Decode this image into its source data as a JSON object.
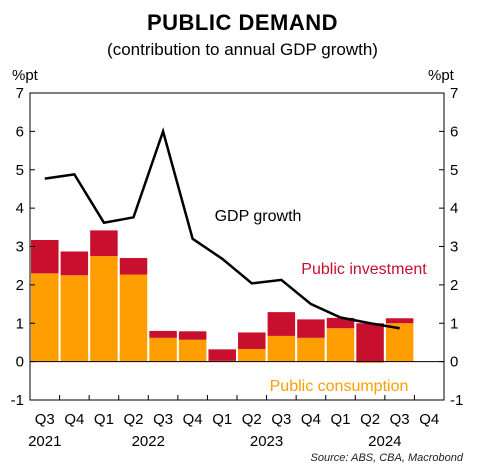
{
  "chart_data": {
    "type": "bar",
    "title": "PUBLIC DEMAND",
    "subtitle": "(contribution to annual GDP growth)",
    "ylabel_left": "%pt",
    "ylabel_right": "%pt",
    "ylim": [
      -1,
      7
    ],
    "yticks": [
      -1,
      0,
      1,
      2,
      3,
      4,
      5,
      6,
      7
    ],
    "categories": [
      "Q3",
      "Q4",
      "Q1",
      "Q2",
      "Q3",
      "Q4",
      "Q1",
      "Q2",
      "Q3",
      "Q4",
      "Q1",
      "Q2",
      "Q3",
      "Q4"
    ],
    "year_labels": [
      {
        "label": "2021",
        "index": 0
      },
      {
        "label": "2022",
        "index": 3.5
      },
      {
        "label": "2023",
        "index": 7.5
      },
      {
        "label": "2024",
        "index": 11.5
      }
    ],
    "grid": false,
    "stacked": true,
    "series": [
      {
        "name": "Public consumption",
        "kind": "bar",
        "color": "#FF9E00",
        "values": [
          2.3,
          2.25,
          2.75,
          2.27,
          0.62,
          0.57,
          0.02,
          0.33,
          0.67,
          0.62,
          0.87,
          -0.03,
          1.0,
          null
        ]
      },
      {
        "name": "Public investment",
        "kind": "bar",
        "color": "#C8102E",
        "values": [
          0.87,
          0.62,
          0.67,
          0.43,
          0.18,
          0.22,
          0.3,
          0.43,
          0.62,
          0.48,
          0.27,
          1.0,
          0.13,
          null
        ]
      },
      {
        "name": "GDP growth",
        "kind": "line",
        "color": "#000000",
        "values": [
          4.77,
          4.88,
          3.62,
          3.76,
          6.0,
          3.2,
          2.68,
          2.04,
          2.13,
          1.5,
          1.15,
          1.0,
          0.87,
          null
        ]
      }
    ],
    "annotations": [
      {
        "text": "GDP growth",
        "color": "#000000"
      },
      {
        "text": "Public investment",
        "color": "#C8102E"
      },
      {
        "text": "Public consumption",
        "color": "#FF9E00"
      }
    ],
    "source": "Source: ABS, CBA, Macrobond"
  }
}
